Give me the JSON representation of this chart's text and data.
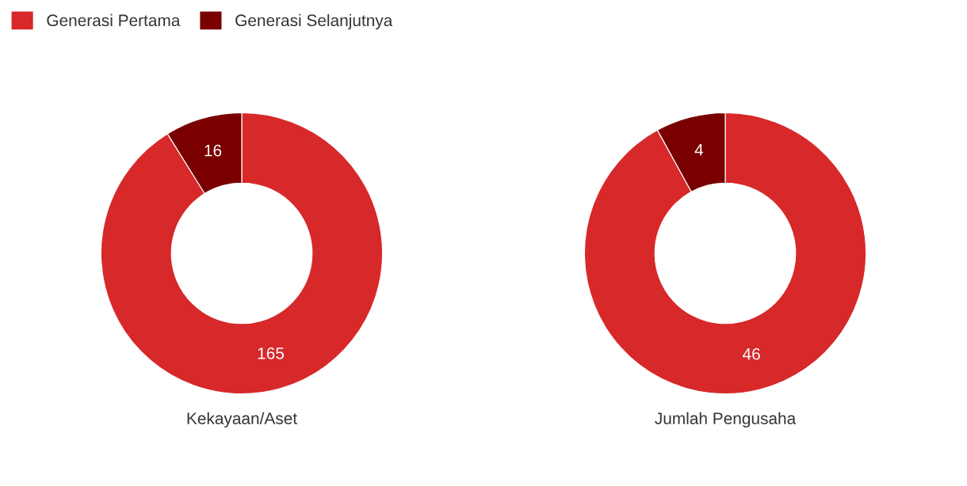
{
  "chart_data": [
    {
      "type": "donut",
      "title": "Kekayaan/Aset",
      "categories": [
        "Generasi Pertama",
        "Generasi Selanjutnya"
      ],
      "values": [
        165,
        16
      ],
      "colors": [
        "#d7282a",
        "#7a0000"
      ],
      "data_labels": true,
      "legend": "top left"
    },
    {
      "type": "donut",
      "title": "Jumlah Pengusaha",
      "categories": [
        null,
        null
      ],
      "values": [
        46,
        4
      ],
      "colors": [
        "#d7282a",
        "#7a0000"
      ],
      "data_labels": true
    }
  ]
}
